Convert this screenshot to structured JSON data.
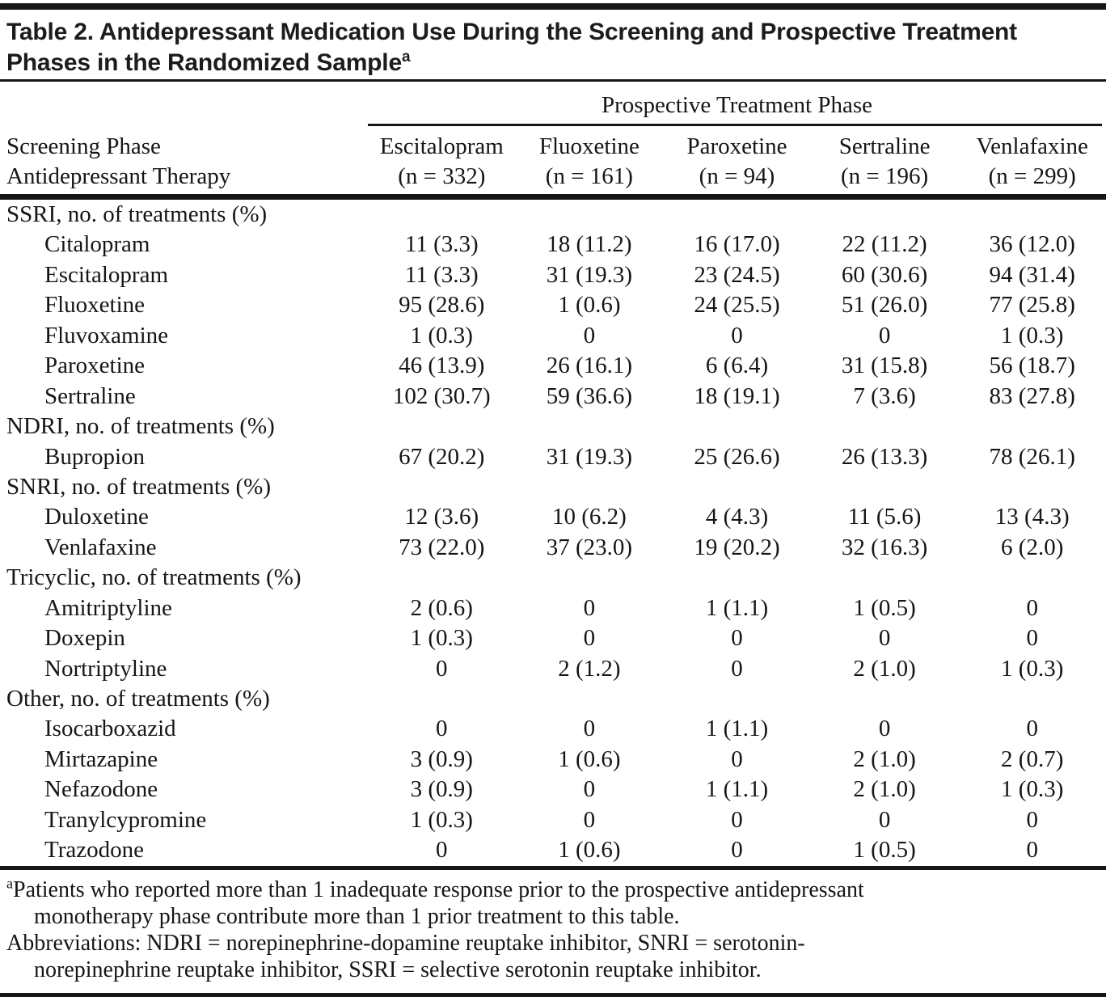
{
  "title": {
    "text": "Table 2. Antidepressant Medication Use During the Screening and Prospective Treatment Phases in the Randomized Sample",
    "footnote_marker": "a"
  },
  "table": {
    "spanner": "Prospective Treatment Phase",
    "stub_header_line1": "Screening Phase",
    "stub_header_line2": "Antidepressant Therapy",
    "columns": [
      {
        "name": "Escitalopram",
        "n": "(n = 332)"
      },
      {
        "name": "Fluoxetine",
        "n": "(n = 161)"
      },
      {
        "name": "Paroxetine",
        "n": "(n = 94)"
      },
      {
        "name": "Sertraline",
        "n": "(n = 196)"
      },
      {
        "name": "Venlafaxine",
        "n": "(n = 299)"
      }
    ],
    "rows": [
      {
        "type": "section",
        "label": "SSRI, no. of treatments (%)"
      },
      {
        "type": "data",
        "label": "Citalopram",
        "values": [
          "11 (3.3)",
          "18 (11.2)",
          "16 (17.0)",
          "22 (11.2)",
          "36 (12.0)"
        ]
      },
      {
        "type": "data",
        "label": "Escitalopram",
        "values": [
          "11 (3.3)",
          "31 (19.3)",
          "23 (24.5)",
          "60 (30.6)",
          "94 (31.4)"
        ]
      },
      {
        "type": "data",
        "label": "Fluoxetine",
        "values": [
          "95 (28.6)",
          "1 (0.6)",
          "24 (25.5)",
          "51 (26.0)",
          "77 (25.8)"
        ]
      },
      {
        "type": "data",
        "label": "Fluvoxamine",
        "values": [
          "1 (0.3)",
          "0",
          "0",
          "0",
          "1 (0.3)"
        ]
      },
      {
        "type": "data",
        "label": "Paroxetine",
        "values": [
          "46 (13.9)",
          "26 (16.1)",
          "6 (6.4)",
          "31 (15.8)",
          "56 (18.7)"
        ]
      },
      {
        "type": "data",
        "label": "Sertraline",
        "values": [
          "102 (30.7)",
          "59 (36.6)",
          "18 (19.1)",
          "7 (3.6)",
          "83 (27.8)"
        ]
      },
      {
        "type": "section",
        "label": "NDRI, no. of treatments (%)"
      },
      {
        "type": "data",
        "label": "Bupropion",
        "values": [
          "67 (20.2)",
          "31 (19.3)",
          "25 (26.6)",
          "26 (13.3)",
          "78 (26.1)"
        ]
      },
      {
        "type": "section",
        "label": "SNRI, no. of treatments (%)"
      },
      {
        "type": "data",
        "label": "Duloxetine",
        "values": [
          "12 (3.6)",
          "10 (6.2)",
          "4 (4.3)",
          "11 (5.6)",
          "13 (4.3)"
        ]
      },
      {
        "type": "data",
        "label": "Venlafaxine",
        "values": [
          "73 (22.0)",
          "37 (23.0)",
          "19 (20.2)",
          "32 (16.3)",
          "6 (2.0)"
        ]
      },
      {
        "type": "section",
        "label": "Tricyclic, no. of treatments (%)"
      },
      {
        "type": "data",
        "label": "Amitriptyline",
        "values": [
          "2 (0.6)",
          "0",
          "1 (1.1)",
          "1 (0.5)",
          "0"
        ]
      },
      {
        "type": "data",
        "label": "Doxepin",
        "values": [
          "1 (0.3)",
          "0",
          "0",
          "0",
          "0"
        ]
      },
      {
        "type": "data",
        "label": "Nortriptyline",
        "values": [
          "0",
          "2 (1.2)",
          "0",
          "2 (1.0)",
          "1 (0.3)"
        ]
      },
      {
        "type": "section",
        "label": "Other, no. of treatments (%)"
      },
      {
        "type": "data",
        "label": "Isocarboxazid",
        "values": [
          "0",
          "0",
          "1 (1.1)",
          "0",
          "0"
        ]
      },
      {
        "type": "data",
        "label": "Mirtazapine",
        "values": [
          "3 (0.9)",
          "1 (0.6)",
          "0",
          "2 (1.0)",
          "2 (0.7)"
        ]
      },
      {
        "type": "data",
        "label": "Nefazodone",
        "values": [
          "3 (0.9)",
          "0",
          "1 (1.1)",
          "2 (1.0)",
          "1 (0.3)"
        ]
      },
      {
        "type": "data",
        "label": "Tranylcypromine",
        "values": [
          "1 (0.3)",
          "0",
          "0",
          "0",
          "0"
        ]
      },
      {
        "type": "data",
        "label": "Trazodone",
        "values": [
          "0",
          "1 (0.6)",
          "0",
          "1 (0.5)",
          "0"
        ]
      }
    ]
  },
  "footnotes": {
    "a_marker": "a",
    "a_lines": [
      "Patients who reported more than 1 inadequate response prior to the prospective antidepressant",
      "monotherapy phase contribute more than 1 prior treatment to this table."
    ],
    "abbrev_lines": [
      "Abbreviations: NDRI = norepinephrine-dopamine reuptake inhibitor, SNRI = serotonin-",
      "norepinephrine reuptake inhibitor, SSRI = selective serotonin reuptake inhibitor."
    ]
  },
  "colors": {
    "ink": "#161616",
    "background": "#ffffff"
  }
}
